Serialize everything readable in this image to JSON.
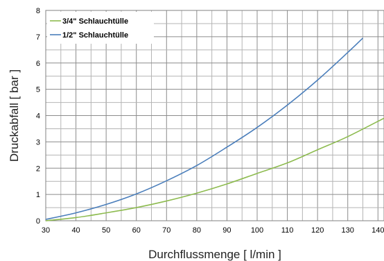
{
  "chart_data": {
    "type": "line",
    "title": "",
    "xlabel": "Durchflussmenge [ l/min ]",
    "ylabel": "Druckabfall [ bar ]",
    "xlim": [
      30,
      142
    ],
    "ylim": [
      0,
      8
    ],
    "xticks": [
      "30",
      "40",
      "50",
      "60",
      "70",
      "80",
      "90",
      "100",
      "110",
      "120",
      "130",
      "140"
    ],
    "yticks": [
      "0",
      "1",
      "2",
      "3",
      "4",
      "5",
      "6",
      "7",
      "8"
    ],
    "grid": true,
    "legend_position": "top-left",
    "series": [
      {
        "name": "3/4\" Schlauchtülle",
        "color": "#8dbb4f",
        "x": [
          30,
          40,
          50,
          60,
          70,
          80,
          90,
          100,
          110,
          120,
          130,
          142
        ],
        "y": [
          0.0,
          0.12,
          0.3,
          0.5,
          0.75,
          1.05,
          1.4,
          1.8,
          2.2,
          2.7,
          3.2,
          3.9
        ]
      },
      {
        "name": "1/2\" Schlauchtülle",
        "color": "#4a7ebb",
        "x": [
          30,
          40,
          50,
          60,
          70,
          80,
          90,
          100,
          110,
          120,
          130,
          135
        ],
        "y": [
          0.05,
          0.3,
          0.62,
          1.02,
          1.52,
          2.1,
          2.8,
          3.55,
          4.4,
          5.35,
          6.4,
          6.95
        ]
      }
    ]
  }
}
